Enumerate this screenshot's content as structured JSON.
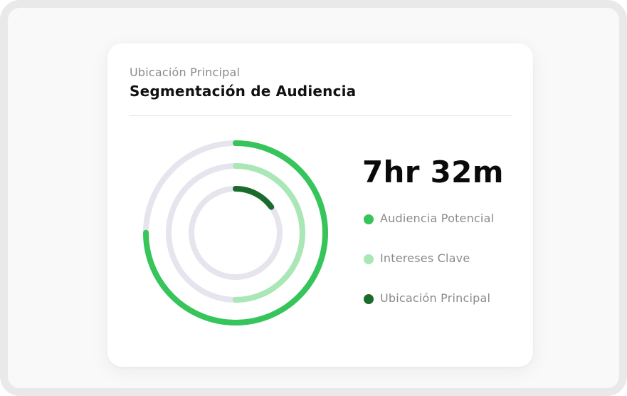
{
  "card": {
    "subtitle": "Ubicación Principal",
    "title": "Segmentación de Audiencia"
  },
  "stat": {
    "value": "7hr 32m"
  },
  "colors": {
    "track": "#e6e5ee",
    "dark_green": "#1b6b2c",
    "green": "#35c55a",
    "light_green": "#a9e7b6"
  },
  "rings": [
    {
      "name": "Audiencia Potencial",
      "progress": 0.75,
      "color": "#35c55a"
    },
    {
      "name": "Intereses Clave",
      "progress": 0.5,
      "color": "#a9e7b6"
    },
    {
      "name": "Ubicación Principal",
      "progress": 0.15,
      "color": "#1b6b2c"
    }
  ],
  "legend": [
    {
      "label": "Audiencia Potencial",
      "color": "#35c55a"
    },
    {
      "label": "Intereses Clave",
      "color": "#a9e7b6"
    },
    {
      "label": "Ubicación Principal",
      "color": "#1b6b2c"
    }
  ]
}
